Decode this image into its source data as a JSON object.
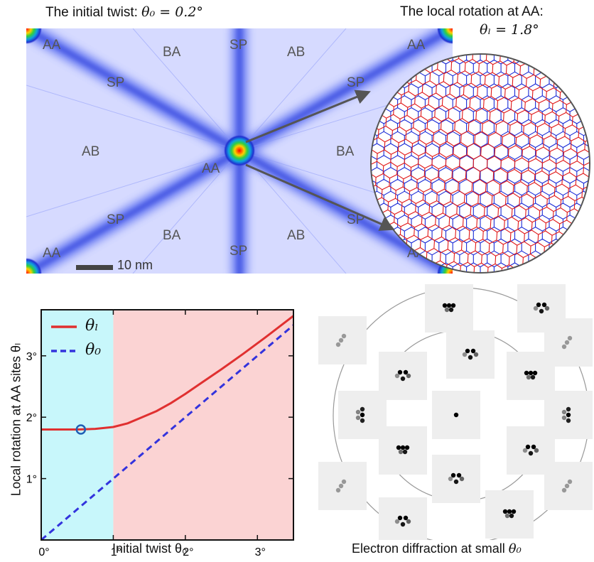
{
  "top_panel": {
    "title_left_text": "The initial twist: ",
    "title_left_math": "θ₀ = 0.2°",
    "title_right_text": "The local rotation at AA:",
    "title_right_math": "θₗ = 1.8°",
    "scale_bar_label": "10 nm",
    "region_labels": {
      "aa": "AA",
      "ab": "AB",
      "ba": "BA",
      "sp": "SP"
    }
  },
  "bottom_right": {
    "caption_text": "Electron diffraction at small ",
    "caption_math": "θ₀"
  },
  "colors": {
    "map_background": "#d0d4ff",
    "domain_wall": "#3a52e8",
    "lattice_red": "#e01818",
    "lattice_blue": "#1a2bd6",
    "series_theta_l": "#e03030",
    "series_theta_0": "#3333dd",
    "shade_left": "#c8f7fb",
    "shade_right": "#fbd3d3"
  },
  "chart_data": {
    "type": "line",
    "xlabel": "Initial twist  θ₀",
    "ylabel": "Local rotation at AA sites  θₗ",
    "xlim": [
      0,
      3.5
    ],
    "ylim": [
      0,
      3.75
    ],
    "x_ticks": [
      0,
      1,
      2,
      3
    ],
    "x_tick_labels": [
      "0°",
      "1°",
      "2°",
      "3°"
    ],
    "y_ticks": [
      1,
      2,
      3
    ],
    "y_tick_labels": [
      "1°",
      "2°",
      "3°"
    ],
    "legend_position": "top-left",
    "shaded_regions": [
      {
        "x_range": [
          0,
          1
        ],
        "color": "#c8f7fb"
      },
      {
        "x_range": [
          1,
          3.5
        ],
        "color": "#fbd3d3"
      }
    ],
    "series": [
      {
        "name": "θₗ",
        "style": "solid",
        "color": "#e03030",
        "x": [
          0,
          0.25,
          0.5,
          0.75,
          1.0,
          1.2,
          1.4,
          1.6,
          1.8,
          2.0,
          2.2,
          2.5,
          2.8,
          3.1,
          3.5
        ],
        "y": [
          1.8,
          1.8,
          1.8,
          1.81,
          1.84,
          1.9,
          2.0,
          2.1,
          2.23,
          2.38,
          2.54,
          2.78,
          3.03,
          3.29,
          3.65
        ]
      },
      {
        "name": "θ₀",
        "style": "dashed",
        "color": "#3333dd",
        "x": [
          0,
          3.5
        ],
        "y": [
          0,
          3.5
        ]
      }
    ],
    "marker": {
      "x": 0.55,
      "y": 1.8,
      "shape": "open-circle",
      "color": "#1f5fb5"
    }
  }
}
